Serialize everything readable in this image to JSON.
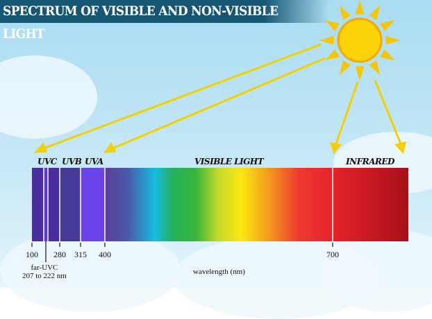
{
  "title": "SPECTRUM OF VISIBLE AND NON-VISIBLE LIGHT",
  "band_labels": {
    "uvc": "UVC",
    "uvb": "UVB",
    "uva": "UVA",
    "visible": "VISIBLE LIGHT",
    "infrared": "INFRARED"
  },
  "ticks": [
    "100",
    "280",
    "315",
    "400",
    "700"
  ],
  "far_uvc": {
    "label": "far-UVC",
    "range": "207 to 222 nm"
  },
  "axis_label": "wavelength (nm)",
  "colors": {
    "title_bg": "#155673",
    "sun": "#f7c600",
    "arrow": "#f3d000",
    "sky": "#a9dcf2"
  }
}
